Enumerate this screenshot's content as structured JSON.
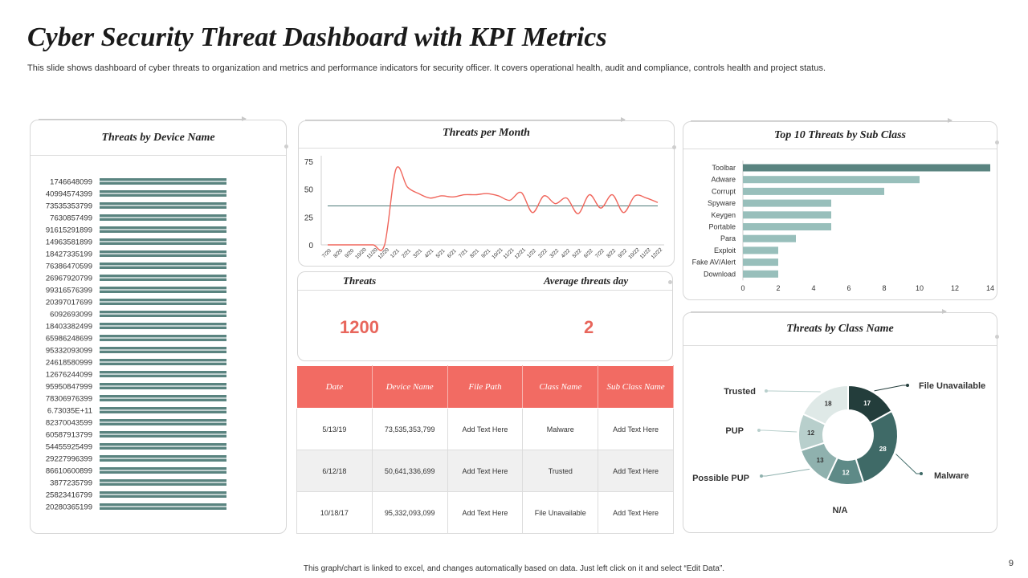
{
  "title": "Cyber Security Threat Dashboard with KPI Metrics",
  "subtitle": "This slide shows dashboard of cyber threats to  organization and metrics and performance indicators for security officer.  It covers operational health, audit and compliance, controls health and project status.",
  "kpis": {
    "threats_label": "Threats",
    "threats_value": "1200",
    "avg_label": "Average threats day",
    "avg_value": "2"
  },
  "table": {
    "headers": [
      "Date",
      "Device Name",
      "File Path",
      "Class Name",
      "Sub Class Name"
    ],
    "rows": [
      [
        "5/13/19",
        "73,535,353,799",
        "Add Text Here",
        "Malware",
        "Add Text Here"
      ],
      [
        "6/12/18",
        "50,641,336,699",
        "Add Text Here",
        "Trusted",
        "Add Text Here"
      ],
      [
        "10/18/17",
        "95,332,093,099",
        "Add Text Here",
        "File Unavailable",
        "Add Text Here"
      ]
    ]
  },
  "footer": "This graph/chart is linked to excel,  and changes automatically based on data. Just left click on it and select “Edit Data”.",
  "page_number": "9",
  "colors": {
    "bar_dark": "#5a8480",
    "bar_light": "#98bfbb",
    "line": "#f0665c",
    "avg_line": "#4d7a77",
    "accent_red": "#f26b63",
    "kpi_red": "#e8665c"
  },
  "chart_data": [
    {
      "type": "bar",
      "orientation": "horizontal",
      "title": "Threats by Device Name",
      "categories": [
        "1746648099",
        "40994574399",
        "73535353799",
        "7630857499",
        "91615291899",
        "14963581899",
        "18427335199",
        "76386470599",
        "26967920799",
        "99316576399",
        "20397017699",
        "6092693099",
        "18403382499",
        "65986248699",
        "95332093099",
        "24618580999",
        "12676244099",
        "95950847999",
        "78306976399",
        "6.73035E+11",
        "82370043599",
        "60587913799",
        "54455925499",
        "29227996399",
        "86610600899",
        "3877235799",
        "25823416799",
        "20280365199"
      ],
      "values": [
        1,
        1,
        1,
        1,
        1,
        1,
        1,
        1,
        1,
        1,
        1,
        1,
        1,
        1,
        1,
        1,
        1,
        1,
        1,
        1,
        1,
        1,
        1,
        1,
        1,
        1,
        1,
        1
      ]
    },
    {
      "type": "line",
      "title": "Threats per Month",
      "x": [
        "7/20",
        "8/20",
        "9/20",
        "10/20",
        "11/20",
        "12/20",
        "1/21",
        "2/21",
        "3/21",
        "4/21",
        "5/21",
        "6/21",
        "7/21",
        "8/21",
        "9/21",
        "10/21",
        "11/21",
        "12/21",
        "1/22",
        "2/22",
        "3/22",
        "4/22",
        "5/22",
        "6/22",
        "7/22",
        "8/22",
        "9/22",
        "10/22",
        "11/22",
        "12/22"
      ],
      "series": [
        {
          "name": "Threats",
          "values": [
            0,
            0,
            0,
            0,
            0,
            0,
            68,
            52,
            46,
            42,
            44,
            43,
            45,
            45,
            46,
            44,
            40,
            47,
            29,
            44,
            37,
            42,
            28,
            45,
            33,
            45,
            29,
            44,
            42,
            38
          ]
        },
        {
          "name": "Average",
          "values": [
            35,
            35,
            35,
            35,
            35,
            35,
            35,
            35,
            35,
            35,
            35,
            35,
            35,
            35,
            35,
            35,
            35,
            35,
            35,
            35,
            35,
            35,
            35,
            35,
            35,
            35,
            35,
            35,
            35,
            35
          ]
        }
      ],
      "y_ticks": [
        0,
        25,
        50,
        75
      ],
      "ylim": [
        0,
        80
      ]
    },
    {
      "type": "bar",
      "orientation": "horizontal",
      "title": "Top 10 Threats by Sub Class",
      "categories": [
        "Toolbar",
        "Adware",
        "Corrupt",
        "Spyware",
        "Keygen",
        "Portable",
        "Para",
        "Exploit",
        "Fake AV/Alert",
        "Download"
      ],
      "values": [
        14,
        10,
        8,
        5,
        5,
        5,
        3,
        2,
        2,
        2
      ],
      "x_ticks": [
        0,
        2,
        4,
        6,
        8,
        10,
        12,
        14
      ],
      "xlim": [
        0,
        14
      ]
    },
    {
      "type": "pie",
      "title": "Threats by Class Name",
      "categories": [
        "File Unavailable",
        "Malware",
        "N/A",
        "Possible PUP",
        "PUP",
        "Trusted"
      ],
      "values": [
        17,
        28,
        12,
        13,
        12,
        18
      ],
      "colors": [
        "#233d3b",
        "#3f6a67",
        "#5e8a87",
        "#8fb1ae",
        "#b8cfcc",
        "#dfe9e7"
      ],
      "label_colors": [
        "#ffffff",
        "#ffffff",
        "#ffffff",
        "#333333",
        "#333333",
        "#333333"
      ]
    }
  ]
}
